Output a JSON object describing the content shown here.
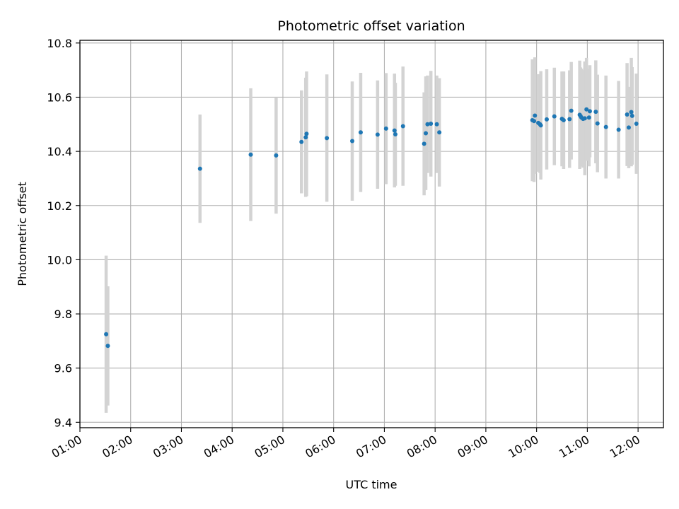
{
  "chart_data": {
    "type": "scatter",
    "title": "Photometric offset variation",
    "xlabel": "UTC time",
    "ylabel": "Photometric offset",
    "x_ticks": [
      "01:00",
      "02:00",
      "03:00",
      "04:00",
      "05:00",
      "06:00",
      "07:00",
      "08:00",
      "09:00",
      "10:00",
      "11:00",
      "12:00"
    ],
    "y_ticks": [
      "9.4",
      "9.6",
      "9.8",
      "10.0",
      "10.2",
      "10.4",
      "10.6",
      "10.8"
    ],
    "xlim": [
      "01:00",
      "12:30"
    ],
    "ylim": [
      9.38,
      10.81
    ],
    "grid": true,
    "colors": {
      "point": "#1f77b4",
      "errorbar": "#d3d3d3",
      "grid": "#b0b0b0",
      "axis": "#000000"
    },
    "series": [
      {
        "x": [
          "01:31",
          "01:33",
          "03:22",
          "04:22",
          "04:52",
          "05:22",
          "05:27",
          "05:28",
          "05:52",
          "06:22",
          "06:32",
          "06:52",
          "07:02",
          "07:12",
          "07:13",
          "07:22",
          "07:47",
          "07:49",
          "07:51",
          "07:55",
          "08:02",
          "08:05",
          "09:55",
          "09:57",
          "09:58",
          "10:02",
          "10:04",
          "10:05",
          "10:12",
          "10:21",
          "10:30",
          "10:32",
          "10:39",
          "10:41",
          "10:51",
          "10:52",
          "10:53",
          "10:55",
          "10:57",
          "10:59",
          "11:02",
          "11:03",
          "11:10",
          "11:12",
          "11:22",
          "11:37",
          "11:47",
          "11:49",
          "11:52",
          "11:53",
          "11:58"
        ],
        "y": [
          9.725,
          9.682,
          10.336,
          10.388,
          10.385,
          10.435,
          10.452,
          10.465,
          10.449,
          10.438,
          10.47,
          10.462,
          10.484,
          10.477,
          10.463,
          10.493,
          10.428,
          10.467,
          10.5,
          10.502,
          10.5,
          10.47,
          10.515,
          10.512,
          10.532,
          10.505,
          10.5,
          10.496,
          10.518,
          10.529,
          10.52,
          10.515,
          10.519,
          10.55,
          10.535,
          10.53,
          10.525,
          10.52,
          10.522,
          10.555,
          10.525,
          10.548,
          10.546,
          10.503,
          10.49,
          10.48,
          10.536,
          10.488,
          10.545,
          10.531,
          10.502
        ],
        "y_err": [
          0.29,
          0.22,
          0.2,
          0.245,
          0.215,
          0.19,
          0.22,
          0.23,
          0.235,
          0.22,
          0.22,
          0.2,
          0.205,
          0.21,
          0.19,
          0.22,
          0.19,
          0.21,
          0.18,
          0.195,
          0.18,
          0.2,
          0.225,
          0.225,
          0.215,
          0.18,
          0.18,
          0.2,
          0.185,
          0.18,
          0.175,
          0.18,
          0.18,
          0.18,
          0.2,
          0.18,
          0.18,
          0.18,
          0.21,
          0.19,
          0.18,
          0.17,
          0.19,
          0.18,
          0.19,
          0.18,
          0.19,
          0.15,
          0.2,
          0.18,
          0.185
        ]
      }
    ]
  }
}
